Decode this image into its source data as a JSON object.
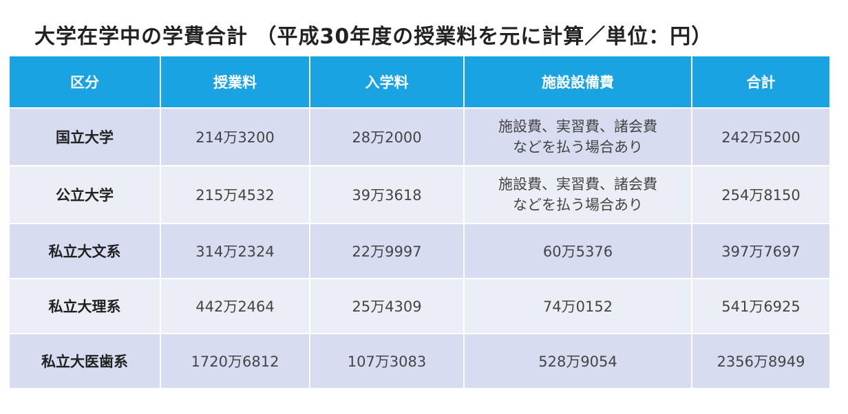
{
  "title": "大学在学中の学費合計 （平成30年度の授業料を元に計算／単位：円）",
  "colors": {
    "header_bg": "#1aa3e3",
    "row_dark": "#d7dcf0",
    "row_light": "#eceef6"
  },
  "table": {
    "headers": [
      "区分",
      "授業料",
      "入学料",
      "施設設備費",
      "合計"
    ],
    "rows": [
      {
        "category": "国立大学",
        "tuition": "214万3200",
        "admission": "28万2000",
        "facility_lines": [
          "施設費、実習費、諸会費",
          "などを払う場合あり"
        ],
        "total": "242万5200"
      },
      {
        "category": "公立大学",
        "tuition": "215万4532",
        "admission": "39万3618",
        "facility_lines": [
          "施設費、実習費、諸会費",
          "などを払う場合あり"
        ],
        "total": "254万8150"
      },
      {
        "category": "私立大文系",
        "tuition": "314万2324",
        "admission": "22万9997",
        "facility_lines": [
          "60万5376"
        ],
        "total": "397万7697"
      },
      {
        "category": "私立大理系",
        "tuition": "442万2464",
        "admission": "25万4309",
        "facility_lines": [
          "74万0152"
        ],
        "total": "541万6925"
      },
      {
        "category": "私立大医歯系",
        "tuition": "1720万6812",
        "admission": "107万3083",
        "facility_lines": [
          "528万9054"
        ],
        "total": "2356万8949"
      }
    ]
  }
}
